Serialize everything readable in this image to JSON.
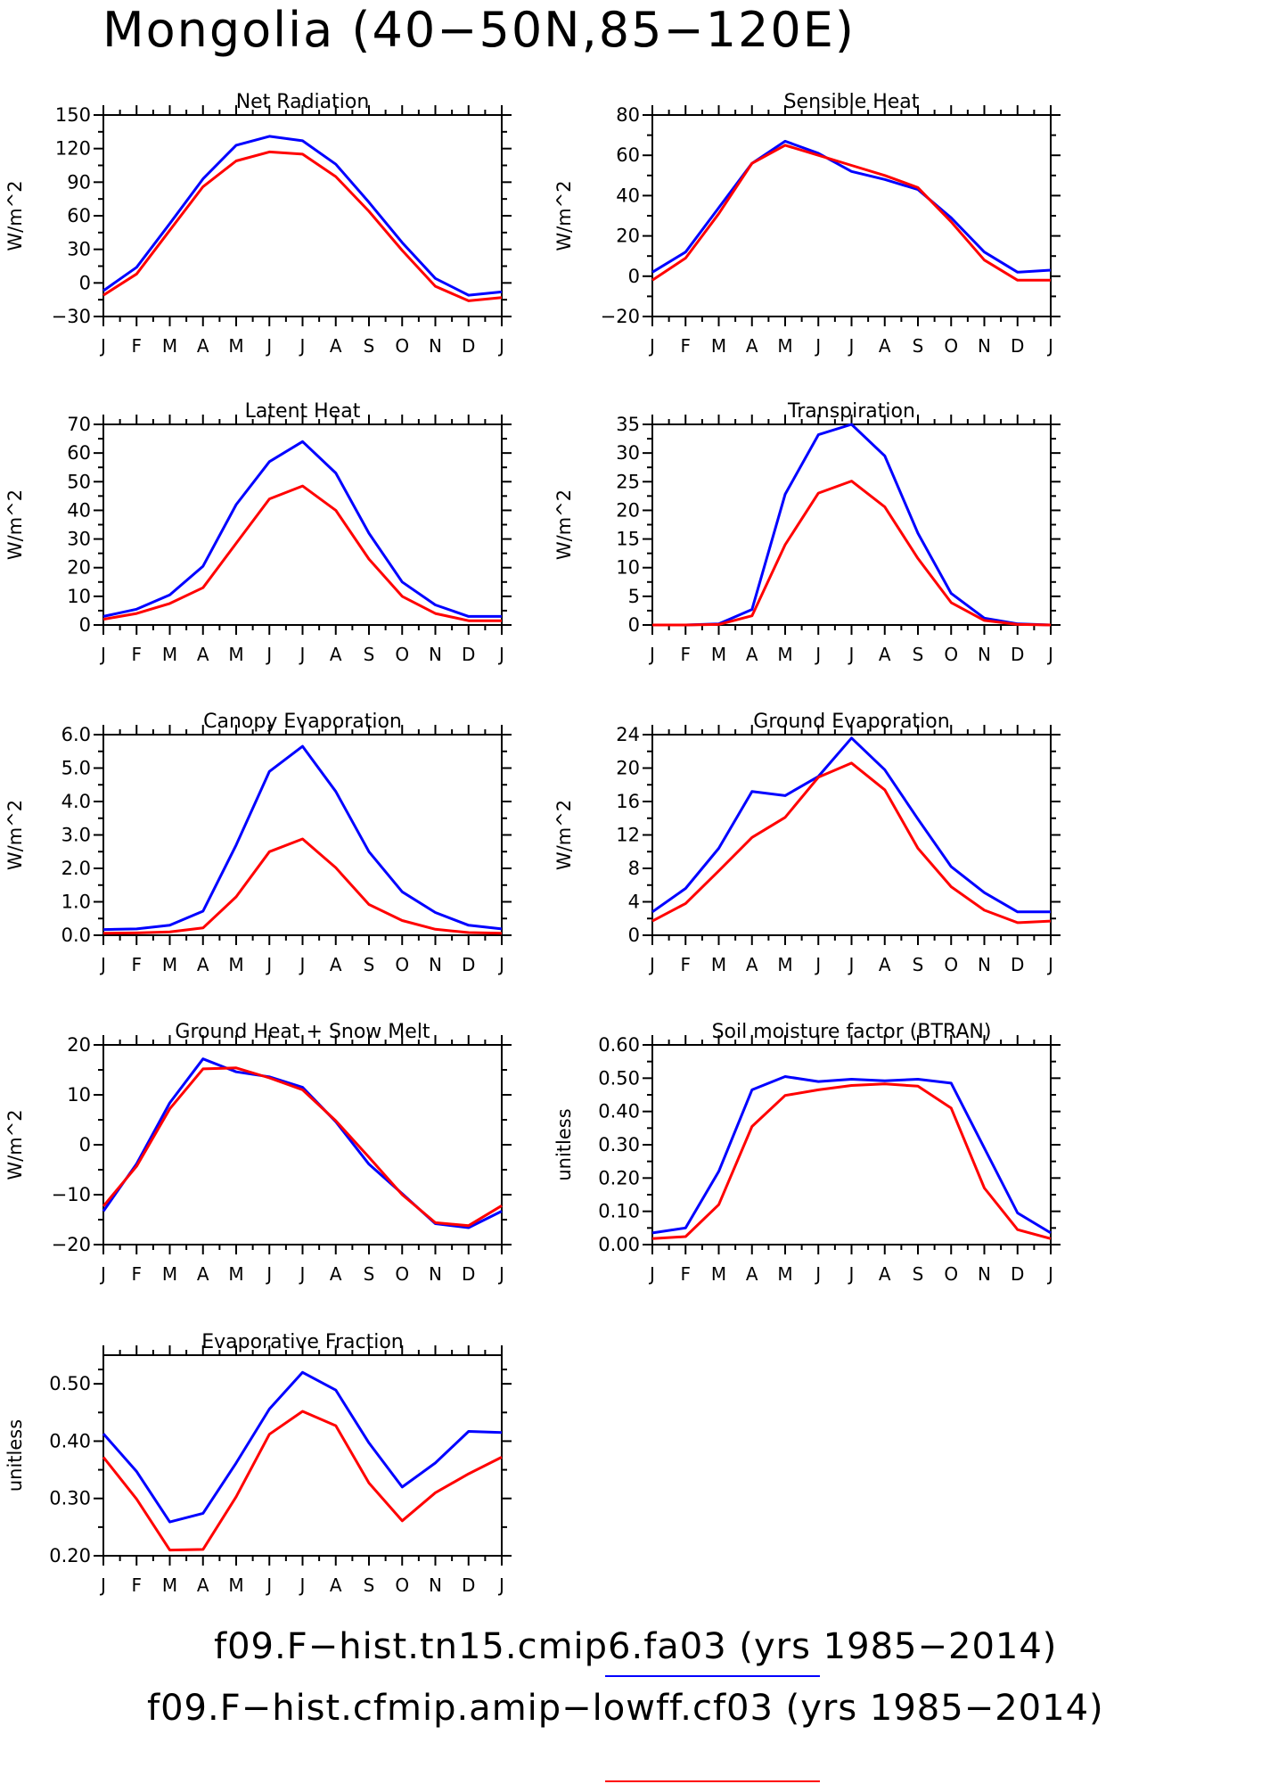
{
  "figure_title": "Mongolia (40−50N,85−120E)",
  "colors": {
    "case1": "#0000ff",
    "case2": "#ff0000",
    "axis": "#000000"
  },
  "legend": [
    {
      "label": "f09.F−hist.tn15.cmip6.fa03 (yrs 1985−2014)",
      "color": "#0000ff"
    },
    {
      "label": "f09.F−hist.cfmip.amip−lowff.cf03 (yrs 1985−2014)",
      "color": "#ff0000"
    }
  ],
  "chart_data": [
    {
      "type": "line",
      "title": "Net Radiation",
      "ylabel": "W/m^2",
      "categories": [
        "J",
        "F",
        "M",
        "A",
        "M",
        "J",
        "J",
        "A",
        "S",
        "O",
        "N",
        "D",
        "J"
      ],
      "ylim": [
        -30,
        150
      ],
      "yticks": [
        -30,
        0,
        30,
        60,
        90,
        120,
        150
      ],
      "ytick_labels": [
        "−30",
        "0",
        "30",
        "60",
        "90",
        "120",
        "150"
      ],
      "series": [
        {
          "color": "#0000ff",
          "values": [
            -7,
            14,
            53,
            93,
            123,
            131,
            127,
            106,
            72,
            36,
            4,
            -11,
            -8
          ]
        },
        {
          "color": "#ff0000",
          "values": [
            -11,
            8,
            47,
            86,
            109,
            117,
            115,
            95,
            64,
            29,
            -3,
            -16,
            -13
          ]
        }
      ]
    },
    {
      "type": "line",
      "title": "Sensible Heat",
      "ylabel": "W/m^2",
      "categories": [
        "J",
        "F",
        "M",
        "A",
        "M",
        "J",
        "J",
        "A",
        "S",
        "O",
        "N",
        "D",
        "J"
      ],
      "ylim": [
        -20,
        80
      ],
      "yticks": [
        -20,
        0,
        20,
        40,
        60,
        80
      ],
      "ytick_labels": [
        "−20",
        "0",
        "20",
        "40",
        "60",
        "80"
      ],
      "series": [
        {
          "color": "#0000ff",
          "values": [
            2,
            12,
            34,
            56,
            67,
            61,
            52,
            48,
            43,
            29,
            12,
            2,
            3
          ]
        },
        {
          "color": "#ff0000",
          "values": [
            -2,
            9,
            31,
            56,
            65,
            60,
            55,
            50,
            44,
            27,
            8,
            -2,
            -2
          ]
        }
      ]
    },
    {
      "type": "line",
      "title": "Latent Heat",
      "ylabel": "W/m^2",
      "categories": [
        "J",
        "F",
        "M",
        "A",
        "M",
        "J",
        "J",
        "A",
        "S",
        "O",
        "N",
        "D",
        "J"
      ],
      "ylim": [
        0,
        70
      ],
      "yticks": [
        0,
        10,
        20,
        30,
        40,
        50,
        60,
        70
      ],
      "ytick_labels": [
        "0",
        "10",
        "20",
        "30",
        "40",
        "50",
        "60",
        "70"
      ],
      "series": [
        {
          "color": "#0000ff",
          "values": [
            3,
            5.5,
            10.5,
            20.5,
            42,
            57,
            64,
            53,
            32,
            15,
            7,
            3,
            3
          ]
        },
        {
          "color": "#ff0000",
          "values": [
            2,
            4,
            7.5,
            13,
            28.5,
            44,
            48.5,
            40,
            23,
            10,
            4,
            1.5,
            1.5
          ]
        }
      ]
    },
    {
      "type": "line",
      "title": "Transpiration",
      "ylabel": "W/m^2",
      "categories": [
        "J",
        "F",
        "M",
        "A",
        "M",
        "J",
        "J",
        "A",
        "S",
        "O",
        "N",
        "D",
        "J"
      ],
      "ylim": [
        0,
        35
      ],
      "yticks": [
        0,
        5,
        10,
        15,
        20,
        25,
        30,
        35
      ],
      "ytick_labels": [
        "0",
        "5",
        "10",
        "15",
        "20",
        "25",
        "30",
        "35"
      ],
      "series": [
        {
          "color": "#0000ff",
          "values": [
            0,
            0,
            0.2,
            2.7,
            22.8,
            33.2,
            35,
            29.5,
            16,
            5.5,
            1.2,
            0.2,
            0
          ]
        },
        {
          "color": "#ff0000",
          "values": [
            0,
            0,
            0.1,
            1.6,
            14,
            23,
            25.1,
            20.6,
            11.6,
            3.9,
            0.8,
            0.1,
            0
          ]
        }
      ]
    },
    {
      "type": "line",
      "title": "Canopy Evaporation",
      "ylabel": "W/m^2",
      "categories": [
        "J",
        "F",
        "M",
        "A",
        "M",
        "J",
        "J",
        "A",
        "S",
        "O",
        "N",
        "D",
        "J"
      ],
      "ylim": [
        0,
        6
      ],
      "yticks": [
        0,
        1,
        2,
        3,
        4,
        5,
        6
      ],
      "ytick_labels": [
        "0.0",
        "1.0",
        "2.0",
        "3.0",
        "4.0",
        "5.0",
        "6.0"
      ],
      "series": [
        {
          "color": "#0000ff",
          "values": [
            0.17,
            0.19,
            0.3,
            0.72,
            2.7,
            4.9,
            5.65,
            4.3,
            2.5,
            1.3,
            0.68,
            0.3,
            0.19
          ]
        },
        {
          "color": "#ff0000",
          "values": [
            0.06,
            0.07,
            0.1,
            0.22,
            1.15,
            2.5,
            2.88,
            2.02,
            0.92,
            0.44,
            0.18,
            0.08,
            0.06
          ]
        }
      ]
    },
    {
      "type": "line",
      "title": "Ground Evaporation",
      "ylabel": "W/m^2",
      "categories": [
        "J",
        "F",
        "M",
        "A",
        "M",
        "J",
        "J",
        "A",
        "S",
        "O",
        "N",
        "D",
        "J"
      ],
      "ylim": [
        0,
        24
      ],
      "yticks": [
        0,
        4,
        8,
        12,
        16,
        20,
        24
      ],
      "ytick_labels": [
        "0",
        "4",
        "8",
        "12",
        "16",
        "20",
        "24"
      ],
      "series": [
        {
          "color": "#0000ff",
          "values": [
            2.8,
            5.6,
            10.4,
            17.2,
            16.7,
            19,
            23.6,
            19.8,
            13.9,
            8.2,
            5.1,
            2.8,
            2.8
          ]
        },
        {
          "color": "#ff0000",
          "values": [
            1.7,
            3.8,
            7.7,
            11.7,
            14.1,
            18.9,
            20.6,
            17.4,
            10.4,
            5.8,
            3,
            1.5,
            1.7
          ]
        }
      ]
    },
    {
      "type": "line",
      "title": "Ground Heat + Snow Melt",
      "ylabel": "W/m^2",
      "categories": [
        "J",
        "F",
        "M",
        "A",
        "M",
        "J",
        "J",
        "A",
        "S",
        "O",
        "N",
        "D",
        "J"
      ],
      "ylim": [
        -20,
        20
      ],
      "yticks": [
        -20,
        -10,
        0,
        10,
        20
      ],
      "ytick_labels": [
        "−20",
        "−10",
        "0",
        "10",
        "20"
      ],
      "series": [
        {
          "color": "#0000ff",
          "values": [
            -13.3,
            -3.8,
            8.4,
            17.2,
            14.6,
            13.6,
            11.5,
            4.6,
            -3.9,
            -9.8,
            -15.8,
            -16.6,
            -13.3
          ]
        },
        {
          "color": "#ff0000",
          "values": [
            -12.3,
            -4.3,
            7.2,
            15.2,
            15.4,
            13.4,
            11,
            4.8,
            -2.5,
            -10,
            -15.6,
            -16.2,
            -12.2
          ]
        }
      ]
    },
    {
      "type": "line",
      "title": "Soil moisture factor (BTRAN)",
      "ylabel": "unitless",
      "categories": [
        "J",
        "F",
        "M",
        "A",
        "M",
        "J",
        "J",
        "A",
        "S",
        "O",
        "N",
        "D",
        "J"
      ],
      "ylim": [
        0,
        0.6
      ],
      "yticks": [
        0,
        0.1,
        0.2,
        0.3,
        0.4,
        0.5,
        0.6
      ],
      "ytick_labels": [
        "0.00",
        "0.10",
        "0.20",
        "0.30",
        "0.40",
        "0.50",
        "0.60"
      ],
      "series": [
        {
          "color": "#0000ff",
          "values": [
            0.035,
            0.05,
            0.22,
            0.465,
            0.505,
            0.49,
            0.497,
            0.492,
            0.497,
            0.485,
            0.29,
            0.095,
            0.035
          ]
        },
        {
          "color": "#ff0000",
          "values": [
            0.018,
            0.024,
            0.12,
            0.355,
            0.448,
            0.465,
            0.478,
            0.483,
            0.476,
            0.41,
            0.17,
            0.045,
            0.018
          ]
        }
      ]
    },
    {
      "type": "line",
      "title": "Evaporative Fraction",
      "ylabel": "unitless",
      "categories": [
        "J",
        "F",
        "M",
        "A",
        "M",
        "J",
        "J",
        "A",
        "S",
        "O",
        "N",
        "D",
        "J"
      ],
      "ylim": [
        0.2,
        0.55
      ],
      "yticks": [
        0.2,
        0.3,
        0.4,
        0.5
      ],
      "ytick_labels": [
        "0.20",
        "0.30",
        "0.40",
        "0.50"
      ],
      "series": [
        {
          "color": "#0000ff",
          "values": [
            0.413,
            0.347,
            0.259,
            0.274,
            0.362,
            0.456,
            0.52,
            0.489,
            0.397,
            0.32,
            0.362,
            0.417,
            0.415
          ]
        },
        {
          "color": "#ff0000",
          "values": [
            0.372,
            0.299,
            0.21,
            0.211,
            0.303,
            0.412,
            0.452,
            0.427,
            0.327,
            0.261,
            0.31,
            0.343,
            0.372
          ]
        }
      ]
    }
  ]
}
